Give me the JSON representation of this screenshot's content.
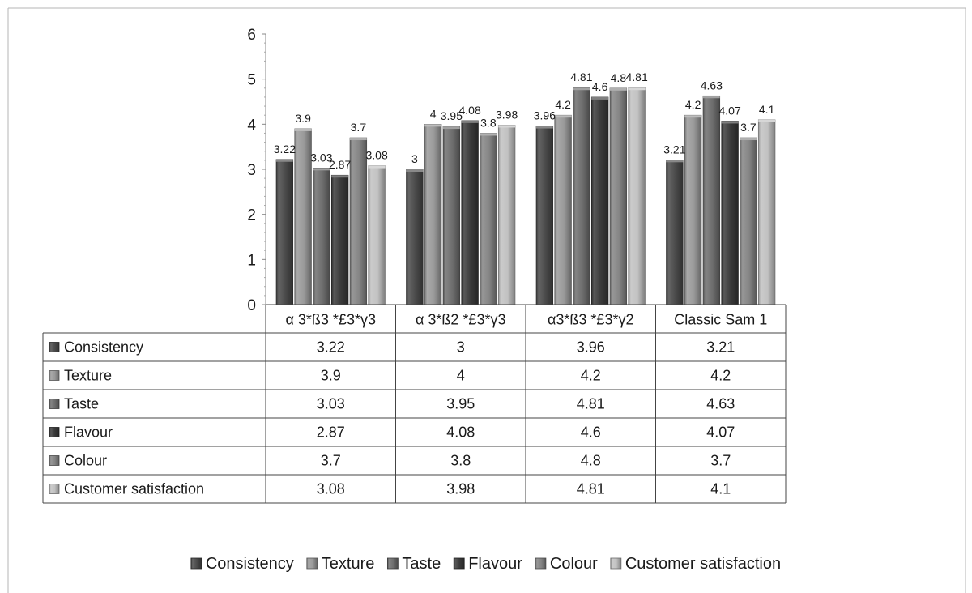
{
  "chart_data": {
    "type": "bar",
    "categories": [
      "α 3*ß3 *£3*γ3",
      "α 3*ß2 *£3*γ3",
      "α3*ß3 *£3*γ2",
      "Classic Sam 1"
    ],
    "series": [
      {
        "name": "Consistency",
        "values": [
          3.22,
          3,
          3.96,
          3.21
        ],
        "labels": [
          "3.22",
          "3",
          "3.96",
          "3.21"
        ],
        "color": "#4a4a4a"
      },
      {
        "name": "Texture",
        "values": [
          3.9,
          4,
          4.2,
          4.2
        ],
        "labels": [
          "3.9",
          "4",
          "4.2",
          "4.2"
        ],
        "color": "#9a9a9a"
      },
      {
        "name": "Taste",
        "values": [
          3.03,
          3.95,
          4.81,
          4.63
        ],
        "labels": [
          "3.03",
          "3.95",
          "4.81",
          "4.63"
        ],
        "color": "#6e6e6e"
      },
      {
        "name": "Flavour",
        "values": [
          2.87,
          4.08,
          4.6,
          4.07
        ],
        "labels": [
          "2.87",
          "4.08",
          "4.6",
          "4.07"
        ],
        "color": "#3a3a3a"
      },
      {
        "name": "Colour",
        "values": [
          3.7,
          3.8,
          4.8,
          3.7
        ],
        "labels": [
          "3.7",
          "3.8",
          "4.8",
          "3.7"
        ],
        "color": "#858585"
      },
      {
        "name": "Customer satisfaction",
        "values": [
          3.08,
          3.98,
          4.81,
          4.1
        ],
        "labels": [
          "3.08",
          "3.98",
          "4.81",
          "4.1"
        ],
        "color": "#c2c2c2"
      }
    ],
    "y_ticks": [
      "0",
      "1",
      "2",
      "3",
      "4",
      "5",
      "6"
    ],
    "ylim": [
      0,
      6
    ],
    "grid": false,
    "data_table": true,
    "legend_position": "bottom"
  }
}
